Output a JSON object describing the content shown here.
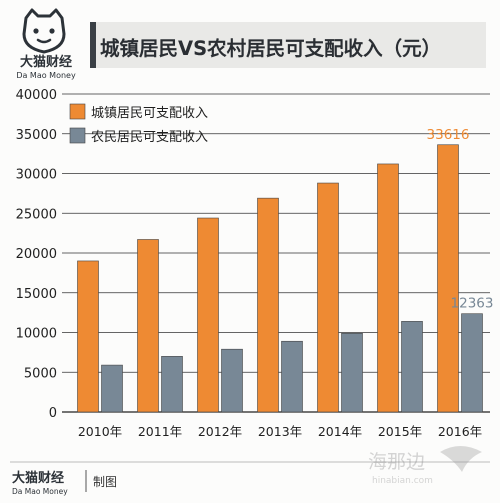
{
  "brand": {
    "name_cn": "大猫财经",
    "name_en": "Da Mao Money",
    "footer_name_cn": "大猫财经",
    "footer_name_en": "Da Mao Money",
    "footer_label": "制图"
  },
  "watermark": {
    "text_cn": "海那边",
    "text_en": "hinabian.com"
  },
  "colors": {
    "urban": "#EE8A33",
    "rural": "#788896",
    "title_bg": "#E9E9E7",
    "title_accent": "#3A3F45",
    "text": "#1f1f1f",
    "gridline": "#222222"
  },
  "chart_data": {
    "type": "bar",
    "title": "城镇居民VS农村居民可支配收入（元）",
    "categories": [
      "2010年",
      "2011年",
      "2012年",
      "2013年",
      "2014年",
      "2015年",
      "2016年"
    ],
    "series": [
      {
        "name": "城镇居民可支配收入",
        "color": "#EE8A33",
        "values": [
          19000,
          21700,
          24400,
          26900,
          28800,
          31200,
          33616
        ]
      },
      {
        "name": "农民居民可支配收入",
        "color": "#788896",
        "values": [
          5900,
          7000,
          7900,
          8900,
          9900,
          11400,
          12363
        ]
      }
    ],
    "data_labels": [
      {
        "series": 0,
        "category": "2016年",
        "text": "33616"
      },
      {
        "series": 1,
        "category": "2016年",
        "text": "12363"
      }
    ],
    "yticks": [
      "0",
      "5000",
      "10000",
      "15000",
      "20000",
      "25000",
      "30000",
      "35000",
      "40000"
    ],
    "ylim": [
      0,
      40000
    ],
    "xlabel": "",
    "ylabel": "",
    "grid": true,
    "legend_position": "top-left"
  }
}
